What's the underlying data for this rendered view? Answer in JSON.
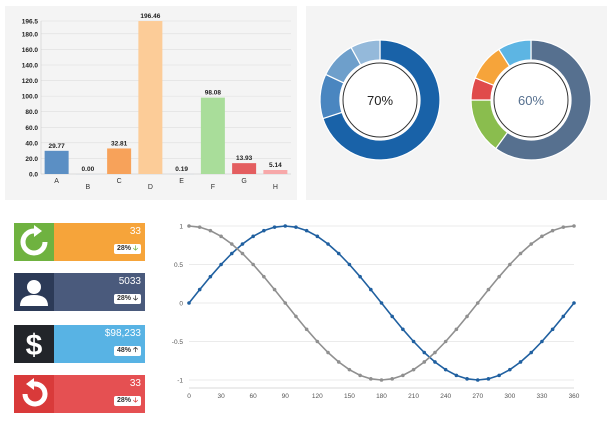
{
  "colors": {
    "panel": "#f4f4f4",
    "bars": [
      "#5b8fc4",
      "#cfd6dc",
      "#f7a25a",
      "#fccc98",
      "#cfd6dc",
      "#a9dd9a",
      "#e45e60",
      "#f7a8a9"
    ],
    "donut1": [
      "#1962a8",
      "#4a86c0",
      "#6e9fcb",
      "#94b9da"
    ],
    "donut2": [
      "#56708f",
      "#8abd4e",
      "#e04b4b",
      "#f6a43a",
      "#5db5e3"
    ],
    "line_sin": "#2060a0",
    "line_cos": "#909090"
  },
  "chart_data": [
    {
      "type": "bar",
      "categories": [
        "A",
        "B",
        "C",
        "D",
        "E",
        "F",
        "G",
        "H"
      ],
      "values": [
        29.77,
        0.0,
        32.81,
        196.46,
        0.19,
        98.08,
        13.93,
        5.14
      ],
      "value_labels": [
        "29.77",
        "0.00",
        "32.81",
        "196.46",
        "0.19",
        "98.08",
        "13.93",
        "5.14"
      ],
      "y_ticks": [
        "0.0",
        "20.0",
        "40.0",
        "60.0",
        "80.0",
        "100.0",
        "120.0",
        "140.0",
        "160.0",
        "180.0",
        "196.5"
      ],
      "ylim": [
        0,
        196.5
      ],
      "grid": true
    },
    {
      "type": "pie",
      "center_label": "70%",
      "values": [
        70,
        12,
        10,
        8
      ]
    },
    {
      "type": "pie",
      "center_label": "60%",
      "values": [
        60,
        15,
        6,
        10,
        9
      ]
    },
    {
      "type": "line",
      "x_ticks": [
        "0",
        "30",
        "60",
        "90",
        "120",
        "150",
        "180",
        "210",
        "240",
        "270",
        "300",
        "330",
        "360"
      ],
      "y_ticks": [
        "1",
        "0.5",
        "0",
        "-0.5",
        "-1"
      ],
      "ylim": [
        -1,
        1
      ],
      "xlim": [
        0,
        360
      ],
      "step": 10,
      "series": [
        {
          "values": [
            0,
            0.174,
            0.342,
            0.5,
            0.643,
            0.766,
            0.866,
            0.94,
            0.985,
            1,
            0.985,
            0.94,
            0.866,
            0.766,
            0.643,
            0.5,
            0.342,
            0.174,
            0,
            -0.174,
            -0.342,
            -0.5,
            -0.643,
            -0.766,
            -0.866,
            -0.94,
            -0.985,
            -1,
            -0.985,
            -0.94,
            -0.866,
            -0.766,
            -0.643,
            -0.5,
            -0.342,
            -0.174,
            0
          ]
        },
        {
          "values": [
            1,
            0.985,
            0.94,
            0.866,
            0.766,
            0.643,
            0.5,
            0.342,
            0.174,
            0,
            -0.174,
            -0.342,
            -0.5,
            -0.643,
            -0.766,
            -0.866,
            -0.94,
            -0.985,
            -1,
            -0.985,
            -0.94,
            -0.866,
            -0.766,
            -0.643,
            -0.5,
            -0.342,
            -0.174,
            0,
            0.174,
            0.342,
            0.5,
            0.643,
            0.766,
            0.866,
            0.94,
            0.985,
            1
          ]
        }
      ]
    }
  ],
  "stats": [
    {
      "value": "33",
      "badge": "28%",
      "trend": "down",
      "icon": "refresh-icon",
      "icon_bg": "#6fb240",
      "body_bg": "#f6a43a"
    },
    {
      "value": "5033",
      "badge": "28%",
      "trend": "down",
      "icon": "user-icon",
      "icon_bg": "#2c3a57",
      "body_bg": "#4a5a7c"
    },
    {
      "value": "$98,233",
      "badge": "48%",
      "trend": "up",
      "icon": "dollar-icon",
      "icon_bg": "#22252a",
      "body_bg": "#58b3e4"
    },
    {
      "value": "33",
      "badge": "28%",
      "trend": "down",
      "icon": "undo-icon",
      "icon_bg": "#d93a3a",
      "body_bg": "#e55052"
    }
  ]
}
